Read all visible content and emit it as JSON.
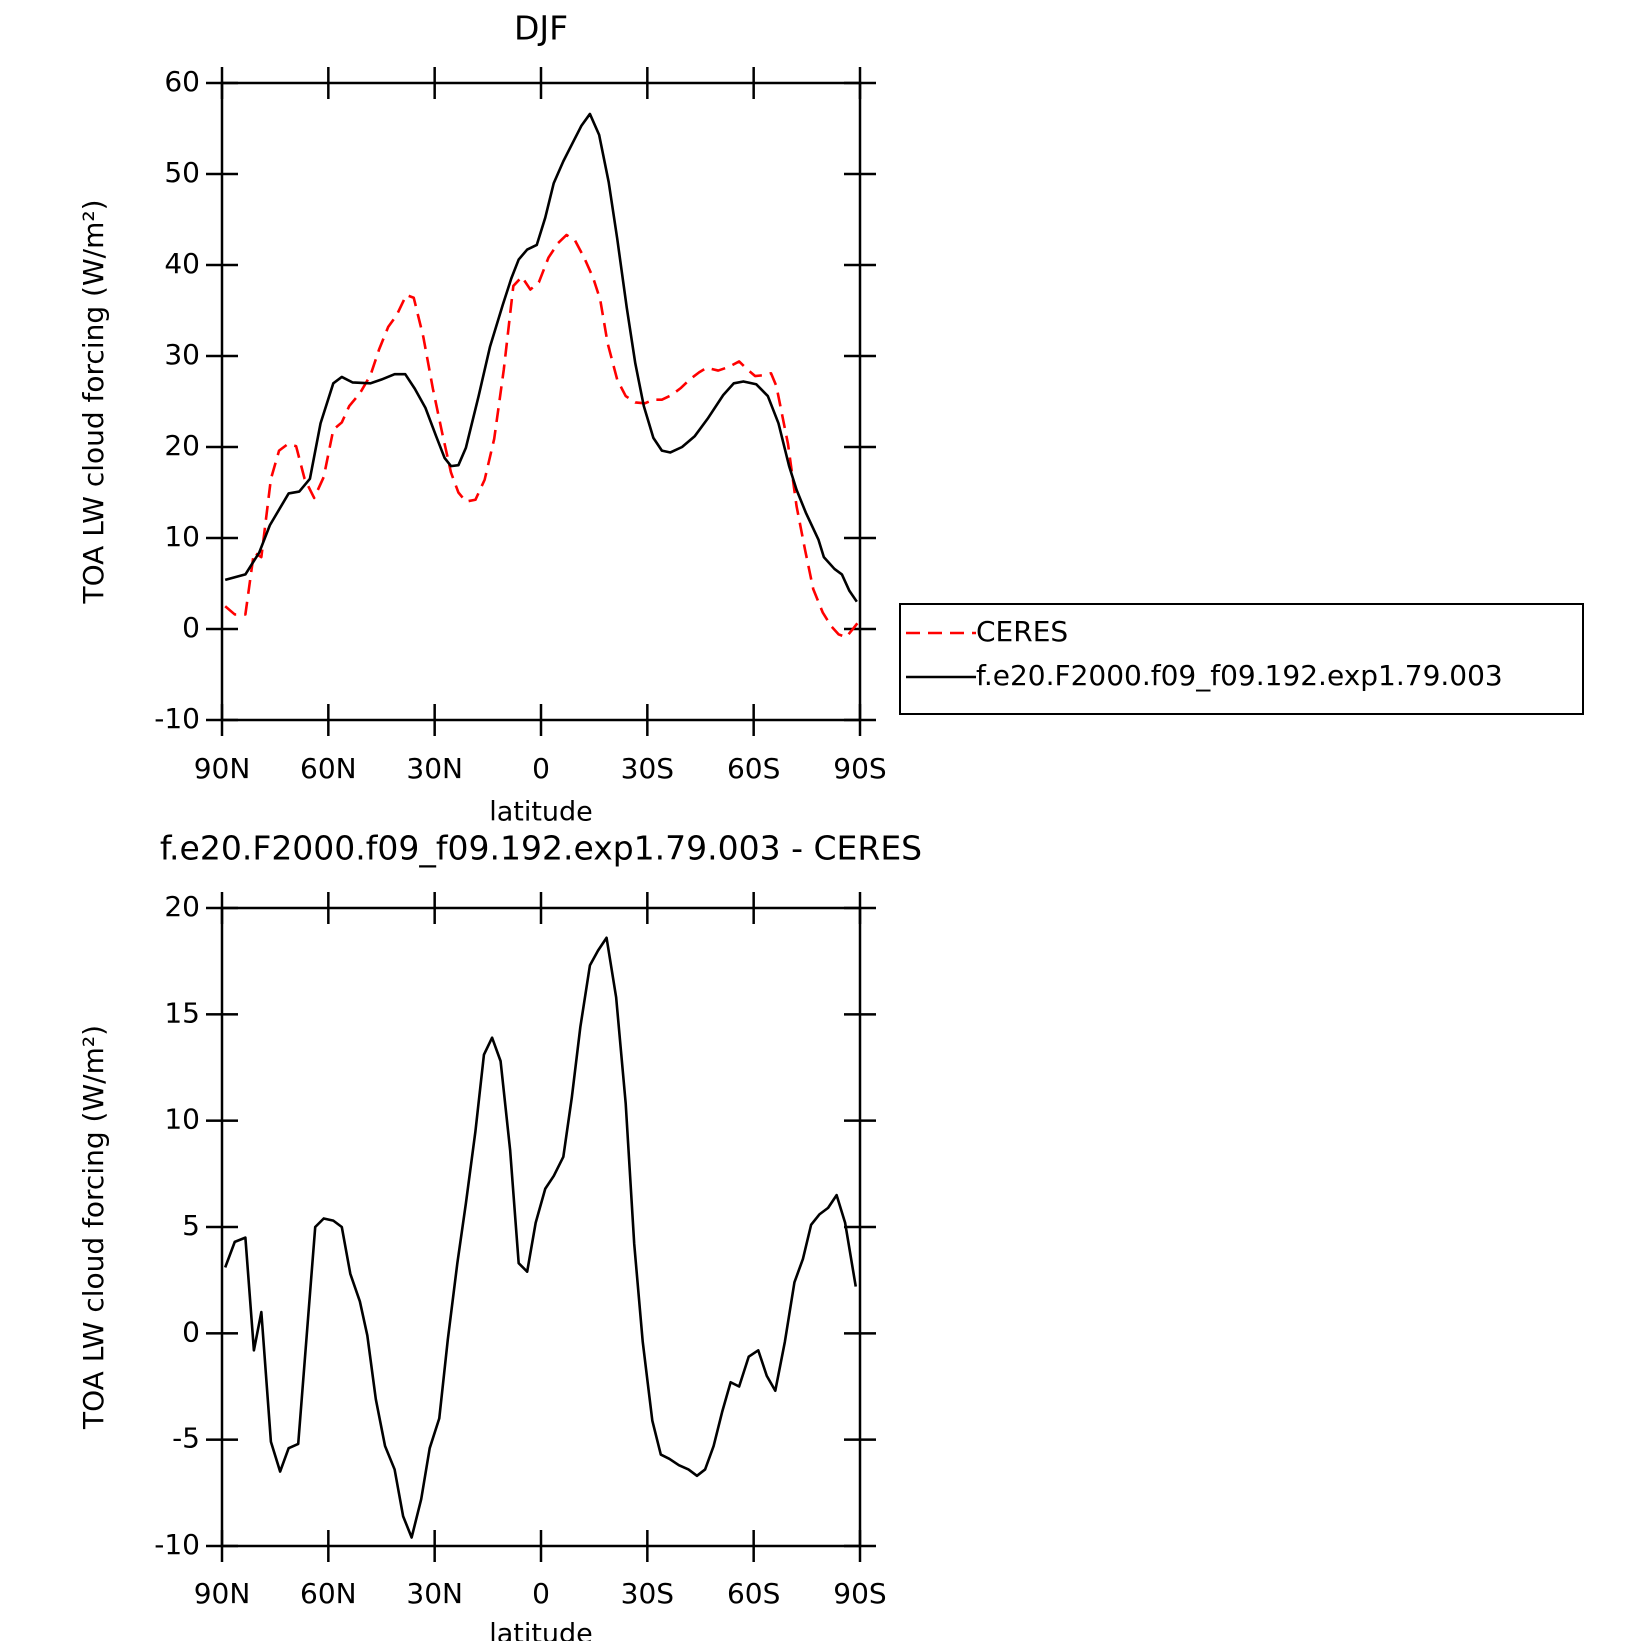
{
  "chart_data": [
    {
      "type": "line",
      "title": "DJF",
      "ylabel": "TOA LW cloud forcing (W/m²)",
      "xlabel": "latitude",
      "xlim": [
        90,
        -90
      ],
      "xticks": [
        {
          "value": 90,
          "label": "90N"
        },
        {
          "value": 60,
          "label": "60N"
        },
        {
          "value": 30,
          "label": "30N"
        },
        0,
        {
          "value": -30,
          "label": "30S"
        },
        {
          "value": -60,
          "label": "60S"
        },
        {
          "value": -90,
          "label": "90S"
        }
      ],
      "ylim": [
        -10,
        60
      ],
      "yticks": [
        -10,
        0,
        10,
        20,
        30,
        40,
        50,
        60
      ],
      "legend": "right",
      "series": [
        {
          "name": "CERES",
          "color": "#ff0000",
          "dash": true,
          "x": [
            89.1,
            86.4,
            83.4,
            81.0,
            78.9,
            76.2,
            73.9,
            71.5,
            69.1,
            66.7,
            64.0,
            61.3,
            58.6,
            56.2,
            54.1,
            51.1,
            48.1,
            45.7,
            43.1,
            40.7,
            38.0,
            35.9,
            33.2,
            30.5,
            27.8,
            25.4,
            23.3,
            21.2,
            18.5,
            15.9,
            13.2,
            10.5,
            7.8,
            5.4,
            3.0,
            0.6,
            -2.1,
            -4.8,
            -7.2,
            -9.6,
            -12.3,
            -14.7,
            -16.7,
            -18.8,
            -21.5,
            -23.9,
            -26.6,
            -29.3,
            -31.7,
            -34.1,
            -36.8,
            -39.5,
            -41.9,
            -44.6,
            -46.7,
            -50.0,
            -53.0,
            -55.9,
            -58.3,
            -60.4,
            -63.1,
            -64.9,
            -66.4,
            -69.7,
            -72.1,
            -74.5,
            -76.8,
            -79.5,
            -81.9,
            -84.0,
            -86.1,
            -88.2,
            -89.4
          ],
          "values": [
            2.5,
            1.6,
            1.6,
            8.4,
            7.9,
            16.5,
            19.6,
            20.3,
            20.1,
            16.5,
            14.4,
            16.7,
            21.9,
            22.7,
            24.5,
            25.9,
            27.9,
            30.7,
            33.2,
            34.5,
            36.7,
            36.4,
            32.1,
            26.4,
            21.4,
            17.2,
            15.0,
            14.0,
            14.2,
            16.4,
            20.9,
            28.5,
            37.7,
            38.7,
            37.3,
            38.1,
            40.8,
            42.4,
            43.3,
            42.7,
            40.7,
            38.6,
            36.2,
            31.4,
            27.4,
            25.6,
            24.9,
            24.8,
            25.2,
            25.2,
            25.7,
            26.5,
            27.4,
            28.2,
            28.7,
            28.4,
            28.8,
            29.4,
            28.5,
            27.8,
            27.9,
            28.1,
            26.7,
            20.3,
            13.5,
            8.7,
            4.4,
            1.8,
            0.3,
            -0.6,
            -0.9,
            0.1,
            0.7
          ]
        },
        {
          "name": "f.e20.F2000.f09_f09.192.exp1.79.003",
          "color": "#000000",
          "dash": false,
          "x": [
            89.1,
            83.4,
            79.5,
            76.5,
            71.2,
            68.2,
            65.2,
            62.2,
            58.6,
            56.2,
            53.2,
            48.1,
            45.1,
            41.3,
            38.3,
            35.6,
            32.6,
            29.6,
            27.2,
            25.4,
            23.3,
            21.2,
            17.6,
            14.4,
            10.8,
            8.4,
            6.3,
            3.9,
            1.2,
            -1.2,
            -3.6,
            -6.3,
            -9.3,
            -11.4,
            -13.8,
            -16.4,
            -19.1,
            -21.5,
            -24.2,
            -26.6,
            -29.0,
            -31.7,
            -34.1,
            -36.5,
            -39.8,
            -43.4,
            -47.0,
            -51.4,
            -54.4,
            -57.1,
            -60.7,
            -64.0,
            -67.0,
            -70.0,
            -72.1,
            -74.7,
            -78.3,
            -79.8,
            -82.8,
            -84.9,
            -87.0,
            -89.1
          ],
          "values": [
            5.4,
            6.0,
            8.4,
            11.4,
            14.9,
            15.1,
            16.5,
            22.6,
            27.0,
            27.7,
            27.1,
            27.0,
            27.4,
            28.0,
            28.0,
            26.4,
            24.3,
            21.2,
            18.8,
            17.9,
            18.0,
            19.9,
            25.6,
            31.0,
            35.6,
            38.5,
            40.6,
            41.7,
            42.2,
            45.2,
            49.0,
            51.4,
            53.7,
            55.3,
            56.6,
            54.3,
            49.1,
            42.9,
            35.3,
            29.2,
            24.5,
            21.0,
            19.6,
            19.4,
            20.0,
            21.2,
            23.1,
            25.7,
            27.0,
            27.2,
            26.9,
            25.6,
            22.6,
            17.9,
            15.3,
            12.8,
            9.8,
            7.9,
            6.6,
            6.0,
            4.2,
            3.0
          ]
        }
      ]
    },
    {
      "type": "line",
      "title": "f.e20.F2000.f09_f09.192.exp1.79.003 - CERES",
      "ylabel": "TOA LW cloud forcing (W/m²)",
      "xlabel": "latitude",
      "xlim": [
        90,
        -90
      ],
      "xticks": [
        {
          "value": 90,
          "label": "90N"
        },
        {
          "value": 60,
          "label": "60N"
        },
        {
          "value": 30,
          "label": "30N"
        },
        0,
        {
          "value": -30,
          "label": "30S"
        },
        {
          "value": -60,
          "label": "60S"
        },
        {
          "value": -90,
          "label": "90S"
        }
      ],
      "ylim": [
        -10,
        20
      ],
      "yticks": [
        -10,
        -5,
        0,
        5,
        10,
        15,
        20
      ],
      "color": "#000000",
      "x": [
        89.1,
        86.4,
        83.4,
        81.0,
        78.9,
        76.2,
        73.6,
        71.2,
        68.5,
        66.1,
        63.7,
        61.3,
        58.6,
        56.2,
        53.8,
        51.1,
        49.0,
        46.6,
        44.0,
        41.3,
        38.9,
        36.5,
        33.8,
        31.4,
        28.7,
        26.3,
        23.6,
        21.2,
        18.5,
        16.1,
        13.8,
        11.4,
        8.7,
        6.3,
        3.9,
        1.5,
        -1.2,
        -3.6,
        -6.3,
        -8.7,
        -11.1,
        -13.8,
        -16.1,
        -18.5,
        -21.2,
        -23.9,
        -26.3,
        -28.7,
        -31.4,
        -33.8,
        -36.2,
        -38.9,
        -41.6,
        -44.0,
        -46.3,
        -48.7,
        -51.1,
        -53.5,
        -55.9,
        -58.6,
        -61.3,
        -63.7,
        -66.1,
        -68.8,
        -71.5,
        -73.9,
        -76.2,
        -78.6,
        -81.0,
        -83.4,
        -85.8,
        -88.8
      ],
      "values": [
        3.1,
        4.3,
        4.5,
        -0.8,
        1.0,
        -5.1,
        -6.5,
        -5.4,
        -5.2,
        -0.1,
        5.0,
        5.4,
        5.3,
        5.0,
        2.8,
        1.5,
        -0.1,
        -3.1,
        -5.3,
        -6.4,
        -8.6,
        -9.6,
        -7.8,
        -5.4,
        -4.0,
        -0.3,
        3.3,
        6.1,
        9.5,
        13.1,
        13.9,
        12.8,
        8.6,
        3.3,
        2.9,
        5.2,
        6.8,
        7.4,
        8.3,
        11.1,
        14.4,
        17.3,
        18.0,
        18.6,
        15.8,
        10.8,
        4.2,
        -0.4,
        -4.1,
        -5.7,
        -5.9,
        -6.2,
        -6.4,
        -6.7,
        -6.4,
        -5.3,
        -3.7,
        -2.3,
        -2.5,
        -1.1,
        -0.8,
        -2.0,
        -2.7,
        -0.4,
        2.4,
        3.5,
        5.1,
        5.6,
        5.9,
        6.5,
        5.2,
        2.2
      ]
    }
  ]
}
